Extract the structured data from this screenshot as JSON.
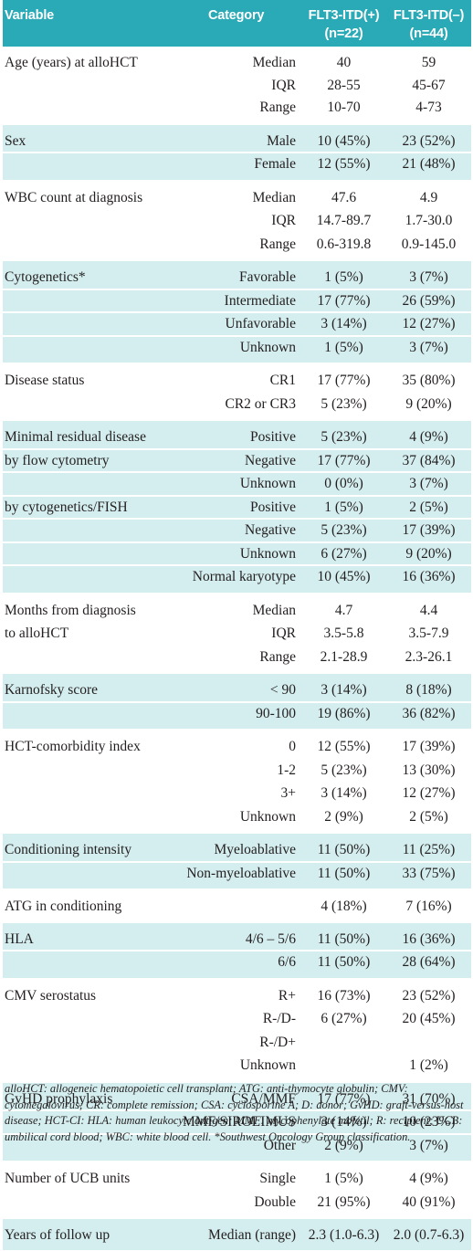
{
  "header": {
    "variable": "Variable",
    "category": "Category",
    "col1": "FLT3-ITD(+)",
    "col1_n": "(n=22)",
    "col2": "FLT3-ITD(–)",
    "col2_n": "(n=44)"
  },
  "colors": {
    "header_bg": "#2aa9b6",
    "header_text": "#ffffff",
    "shade": "#d4edee",
    "text": "#231f20"
  },
  "groups": [
    {
      "shaded": false,
      "rows": [
        {
          "variable": "Age (years) at alloHCT",
          "category": "Median",
          "pos": "40",
          "neg": "59"
        },
        {
          "variable": "",
          "category": "IQR",
          "pos": "28-55",
          "neg": "45-67"
        },
        {
          "variable": "",
          "category": "Range",
          "pos": "10-70",
          "neg": "4-73"
        }
      ]
    },
    {
      "shaded": true,
      "rows": [
        {
          "variable": "Sex",
          "category": "Male",
          "pos": "10 (45%)",
          "neg": "23 (52%)"
        },
        {
          "variable": "",
          "category": "Female",
          "pos": "12 (55%)",
          "neg": "21 (48%)"
        }
      ]
    },
    {
      "shaded": false,
      "rows": [
        {
          "variable": "WBC count at diagnosis",
          "category": "Median",
          "pos": "47.6",
          "neg": "4.9"
        },
        {
          "variable": "",
          "category": "IQR",
          "pos": "14.7-89.7",
          "neg": "1.7-30.0"
        },
        {
          "variable": "",
          "category": "Range",
          "pos": "0.6-319.8",
          "neg": "0.9-145.0"
        }
      ]
    },
    {
      "shaded": true,
      "rows": [
        {
          "variable": "Cytogenetics*",
          "category": "Favorable",
          "pos": "1 (5%)",
          "neg": "3 (7%)"
        },
        {
          "variable": "",
          "category": "Intermediate",
          "pos": "17 (77%)",
          "neg": "26 (59%)"
        },
        {
          "variable": "",
          "category": "Unfavorable",
          "pos": "3 (14%)",
          "neg": "12 (27%)"
        },
        {
          "variable": "",
          "category": "Unknown",
          "pos": "1 (5%)",
          "neg": "3 (7%)"
        }
      ]
    },
    {
      "shaded": false,
      "rows": [
        {
          "variable": "Disease status",
          "category": "CR1",
          "pos": "17 (77%)",
          "neg": "35 (80%)"
        },
        {
          "variable": "",
          "category": "CR2 or CR3",
          "pos": "5 (23%)",
          "neg": "9 (20%)"
        }
      ]
    },
    {
      "shaded": true,
      "rows": [
        {
          "variable": "Minimal residual disease",
          "category": "Positive",
          "pos": "5 (23%)",
          "neg": "4 (9%)"
        },
        {
          "variable": " by flow cytometry",
          "category": "Negative",
          "pos": "17 (77%)",
          "neg": "37 (84%)"
        },
        {
          "variable": "",
          "category": "Unknown",
          "pos": "0 (0%)",
          "neg": "3 (7%)"
        },
        {
          "variable": " by cytogenetics/FISH",
          "category": "Positive",
          "pos": "1 (5%)",
          "neg": "2 (5%)"
        },
        {
          "variable": "",
          "category": "Negative",
          "pos": "5 (23%)",
          "neg": "17 (39%)"
        },
        {
          "variable": "",
          "category": "Unknown",
          "pos": "6 (27%)",
          "neg": "9 (20%)"
        },
        {
          "variable": "",
          "category": "Normal karyotype",
          "pos": "10 (45%)",
          "neg": "16 (36%)"
        }
      ]
    },
    {
      "shaded": false,
      "rows": [
        {
          "variable": "Months from diagnosis",
          "category": "Median",
          "pos": "4.7",
          "neg": "4.4"
        },
        {
          "variable": "to alloHCT",
          "category": "IQR",
          "pos": "3.5-5.8",
          "neg": "3.5-7.9"
        },
        {
          "variable": "",
          "category": "Range",
          "pos": "2.1-28.9",
          "neg": "2.3-26.1"
        }
      ]
    },
    {
      "shaded": true,
      "rows": [
        {
          "variable": "Karnofsky score",
          "category": "< 90",
          "pos": "3 (14%)",
          "neg": "8 (18%)"
        },
        {
          "variable": "",
          "category": "90-100",
          "pos": "19 (86%)",
          "neg": "36 (82%)"
        }
      ]
    },
    {
      "shaded": false,
      "rows": [
        {
          "variable": "HCT-comorbidity index",
          "category": "0",
          "pos": "12 (55%)",
          "neg": "17 (39%)"
        },
        {
          "variable": "",
          "category": "1-2",
          "pos": "5 (23%)",
          "neg": "13 (30%)"
        },
        {
          "variable": "",
          "category": "3+",
          "pos": "3 (14%)",
          "neg": "12 (27%)"
        },
        {
          "variable": "",
          "category": "Unknown",
          "pos": "2 (9%)",
          "neg": "2 (5%)"
        }
      ]
    },
    {
      "shaded": true,
      "rows": [
        {
          "variable": "Conditioning intensity",
          "category": "Myeloablative",
          "pos": "11 (50%)",
          "neg": "11 (25%)"
        },
        {
          "variable": "",
          "category": "Non-myeloablative",
          "pos": "11 (50%)",
          "neg": "33 (75%)"
        }
      ]
    },
    {
      "shaded": false,
      "rows": [
        {
          "variable": "ATG in conditioning",
          "category": "",
          "pos": "4 (18%)",
          "neg": "7 (16%)"
        }
      ]
    },
    {
      "shaded": true,
      "rows": [
        {
          "variable": "HLA",
          "category": "4/6 – 5/6",
          "pos": "11 (50%)",
          "neg": "16 (36%)"
        },
        {
          "variable": "",
          "category": "6/6",
          "pos": "11 (50%)",
          "neg": "28 (64%)"
        }
      ]
    },
    {
      "shaded": false,
      "rows": [
        {
          "variable": "CMV serostatus",
          "category": "R+",
          "pos": "16 (73%)",
          "neg": "23 (52%)"
        },
        {
          "variable": "",
          "category": "R-/D-",
          "pos": "6 (27%)",
          "neg": "20 (45%)"
        },
        {
          "variable": "",
          "category": "R-/D+",
          "pos": "",
          "neg": ""
        },
        {
          "variable": "",
          "category": "Unknown",
          "pos": "",
          "neg": "1 (2%)"
        }
      ]
    },
    {
      "shaded": true,
      "rows": [
        {
          "variable": "GvHD prophylaxis",
          "category": "CSA/MMF",
          "pos": "17 (77%)",
          "neg": "31 (70%)"
        },
        {
          "variable": "",
          "category": "MMF/SIROLIMUS",
          "pos": "3 (14%)",
          "neg": "10 (23%)"
        },
        {
          "variable": "",
          "category": "Other",
          "pos": "2 (9%)",
          "neg": "3 (7%)"
        }
      ]
    },
    {
      "shaded": false,
      "rows": [
        {
          "variable": "Number of UCB units",
          "category": "Single",
          "pos": "1 (5%)",
          "neg": "4 (9%)"
        },
        {
          "variable": "",
          "category": "Double",
          "pos": "21 (95%)",
          "neg": "40 (91%)"
        }
      ]
    },
    {
      "shaded": true,
      "rows": [
        {
          "variable": "Years of follow up",
          "category": "Median (range)",
          "pos": "2.3 (1.0-6.3)",
          "neg": "2.0 (0.7-6.3)"
        }
      ]
    }
  ],
  "footnote": "alloHCT: allogeneic hematopoietic cell transplant; ATG: anti-thymocyte globulin; CMV: cytomegalovirus; CR: complete remission; CSA: cyclosporine A; D: donor; GvHD: graft-versus-host disease; HCT-CI: HLA: human leukocyte antigen; MMF: mycophenylate mofetil; R: recipient; UCB: umbilical cord blood; WBC: white blood cell. *Southwest Oncology Group classification."
}
